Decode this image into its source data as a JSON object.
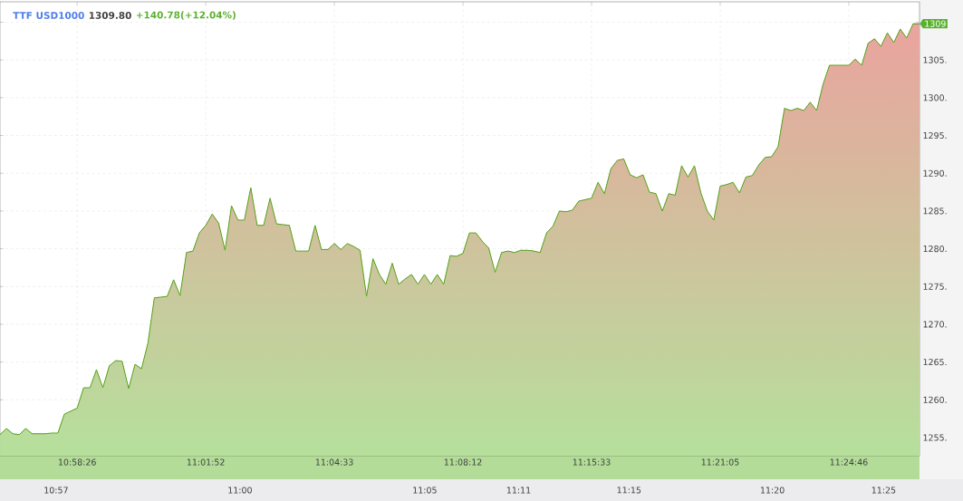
{
  "chart_data": {
    "type": "area",
    "title": "TTF USD1000",
    "subtitle": "1309.80",
    "annotations": [
      "+140.78(+12.04%)",
      "1309",
      "10:57",
      "11:00",
      "11:05",
      "11:11",
      "11:15",
      "11:20",
      "11:25"
    ],
    "ylim": [
      1252.6,
      1312.7
    ],
    "yticks": [
      {
        "value": 1255,
        "label": "1255."
      },
      {
        "value": 1260,
        "label": "1260."
      },
      {
        "value": 1265,
        "label": "1265."
      },
      {
        "value": 1270,
        "label": "1270."
      },
      {
        "value": 1275,
        "label": "1275."
      },
      {
        "value": 1280,
        "label": "1280."
      },
      {
        "value": 1285,
        "label": "1285."
      },
      {
        "value": 1290,
        "label": "1290."
      },
      {
        "value": 1295,
        "label": "1295."
      },
      {
        "value": 1300,
        "label": "1300."
      },
      {
        "value": 1305,
        "label": "1305."
      },
      {
        "value": 1310,
        "label": null
      }
    ],
    "grid": true,
    "marker": "none",
    "line_style": "solid",
    "categories": [
      null,
      null,
      null,
      null,
      null,
      null,
      null,
      null,
      null,
      null,
      null,
      null,
      "10:58:26",
      null,
      null,
      null,
      null,
      null,
      null,
      null,
      null,
      null,
      null,
      null,
      null,
      null,
      null,
      null,
      null,
      null,
      null,
      null,
      "11:01:52",
      null,
      null,
      null,
      null,
      null,
      null,
      null,
      null,
      null,
      null,
      null,
      null,
      null,
      null,
      null,
      null,
      null,
      null,
      null,
      "11:04:33",
      null,
      null,
      null,
      null,
      null,
      null,
      null,
      null,
      null,
      null,
      null,
      null,
      null,
      null,
      null,
      null,
      null,
      null,
      null,
      "11:08:12",
      null,
      null,
      null,
      null,
      null,
      null,
      null,
      null,
      null,
      null,
      null,
      null,
      null,
      null,
      null,
      null,
      null,
      null,
      null,
      "11:15:33",
      null,
      null,
      null,
      null,
      null,
      null,
      null,
      null,
      null,
      null,
      null,
      null,
      null,
      null,
      null,
      null,
      null,
      null,
      null,
      "11:21:05",
      null,
      null,
      null,
      null,
      null,
      null,
      null,
      null,
      null,
      null,
      null,
      null,
      null,
      null,
      null,
      null,
      null,
      null,
      null,
      "11:24:46",
      null,
      null,
      null,
      null,
      null,
      null,
      null,
      null,
      null,
      null,
      null
    ],
    "series": [
      {
        "color": "#5aaa1e",
        "values": [
          1255.4,
          1256.2,
          1255.5,
          1255.4,
          1256.2,
          1255.5,
          1255.5,
          1255.5,
          1255.6,
          1255.6,
          1258.1,
          1258.5,
          1258.9,
          1261.6,
          1261.6,
          1264.0,
          1261.6,
          1264.5,
          1265.2,
          1265.1,
          1261.5,
          1264.7,
          1264.1,
          1267.5,
          1273.5,
          1273.6,
          1273.7,
          1275.9,
          1273.8,
          1279.5,
          1279.7,
          1282.1,
          1283.1,
          1284.6,
          1283.4,
          1279.8,
          1285.7,
          1283.8,
          1283.8,
          1288.1,
          1283.1,
          1283.1,
          1286.7,
          1283.3,
          1283.2,
          1283.1,
          1279.7,
          1279.7,
          1279.7,
          1283.1,
          1279.9,
          1279.9,
          1280.7,
          1279.9,
          1280.7,
          1280.3,
          1279.8,
          1273.7,
          1278.7,
          1276.6,
          1275.3,
          1278.1,
          1275.3,
          1276.0,
          1276.6,
          1275.3,
          1276.6,
          1275.3,
          1276.6,
          1275.3,
          1279.1,
          1279.0,
          1279.4,
          1282.1,
          1282.1,
          1281.0,
          1280.1,
          1276.9,
          1279.5,
          1279.7,
          1279.5,
          1279.8,
          1279.8,
          1279.7,
          1279.5,
          1282.1,
          1283.0,
          1285.0,
          1284.9,
          1285.1,
          1286.3,
          1286.5,
          1286.7,
          1288.8,
          1287.3,
          1290.6,
          1291.7,
          1291.9,
          1289.8,
          1289.4,
          1289.8,
          1287.5,
          1287.3,
          1285.0,
          1287.3,
          1287.1,
          1291.0,
          1289.5,
          1291.0,
          1287.4,
          1285.0,
          1283.8,
          1288.3,
          1288.5,
          1288.8,
          1287.4,
          1289.5,
          1289.7,
          1291.1,
          1292.1,
          1292.2,
          1293.5,
          1298.6,
          1298.3,
          1298.6,
          1298.3,
          1299.4,
          1298.3,
          1301.8,
          1304.3,
          1304.3,
          1304.3,
          1304.3,
          1305.1,
          1304.3,
          1307.2,
          1307.8,
          1306.8,
          1308.6,
          1307.3,
          1309.1,
          1307.9,
          1309.8,
          1309.8
        ]
      }
    ]
  }
}
